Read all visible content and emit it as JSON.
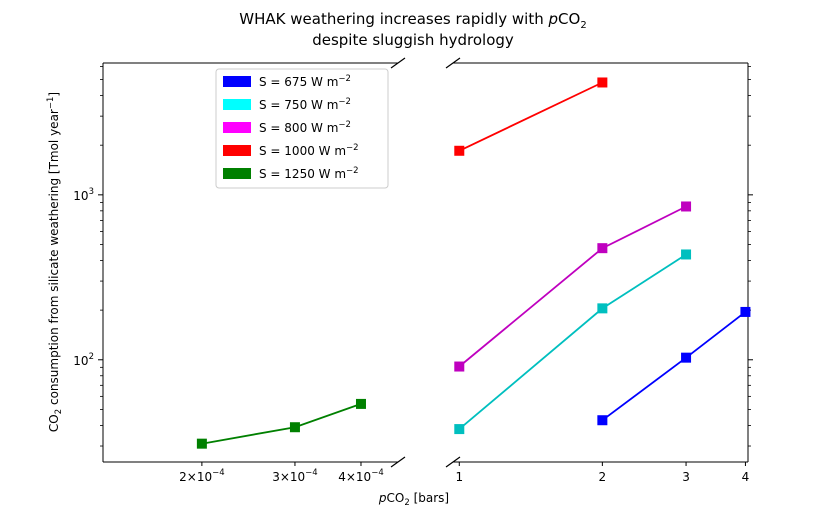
{
  "chart_data": {
    "type": "line",
    "title_line1_prefix": "WHAK weathering increases rapidly with ",
    "title_line1_var": "p",
    "title_line1_co": "CO",
    "title_line1_sub": "2",
    "title_line2": "despite sluggish hydrology",
    "ylabel_co": "CO",
    "ylabel_sub": "2",
    "ylabel_rest": " consumption from silicate weathering [Tmol year",
    "ylabel_exp": "−1",
    "ylabel_close": "]",
    "xlabel_var": "p",
    "xlabel_co": "CO",
    "xlabel_sub": "2",
    "xlabel_rest": " [bars]",
    "y_scale": "log",
    "ylim": [
      24,
      6300
    ],
    "y_ticks": [
      {
        "value": 100,
        "base": "10",
        "exp": "2"
      },
      {
        "value": 1000,
        "base": "10",
        "exp": "3"
      }
    ],
    "x_scale": "log",
    "left_panel": {
      "xlim": [
        0.00013,
        0.00047
      ],
      "x_ticks": [
        {
          "value": 0.0002,
          "mant": "2",
          "times": "×",
          "base": "10",
          "exp": "−4"
        },
        {
          "value": 0.0003,
          "mant": "3",
          "times": "×",
          "base": "10",
          "exp": "−4"
        },
        {
          "value": 0.0004,
          "mant": "4",
          "times": "×",
          "base": "10",
          "exp": "−4"
        }
      ]
    },
    "right_panel": {
      "xlim": [
        0.97,
        4.05
      ],
      "x_ticks": [
        {
          "value": 1,
          "label": "1"
        },
        {
          "value": 2,
          "label": "2"
        },
        {
          "value": 3,
          "label": "3"
        },
        {
          "value": 4,
          "label": "4"
        }
      ]
    },
    "legend": {
      "placement": "upper-center",
      "entries": [
        {
          "label_prefix": "S = 675 W m",
          "label_exp": "−2",
          "color": "#0000ff"
        },
        {
          "label_prefix": "S = 750 W m",
          "label_exp": "−2",
          "color": "#00ffff"
        },
        {
          "label_prefix": "S = 800 W m",
          "label_exp": "−2",
          "color": "#ff00ff"
        },
        {
          "label_prefix": "S = 1000 W m",
          "label_exp": "−2",
          "color": "#ff0000"
        },
        {
          "label_prefix": "S = 1250 W m",
          "label_exp": "−2",
          "color": "#008000"
        }
      ]
    },
    "series": [
      {
        "color": "#0000ff",
        "panel": "right",
        "x": [
          2,
          3,
          4
        ],
        "y": [
          43,
          103,
          195
        ]
      },
      {
        "color": "#00bfbf",
        "panel": "right",
        "x": [
          1,
          2,
          3
        ],
        "y": [
          38,
          205,
          435
        ]
      },
      {
        "color": "#bf00bf",
        "panel": "right",
        "x": [
          1,
          2,
          3
        ],
        "y": [
          91,
          475,
          850
        ]
      },
      {
        "color": "#ff0000",
        "panel": "right",
        "x": [
          1,
          2
        ],
        "y": [
          1850,
          4800
        ]
      },
      {
        "color": "#008000",
        "panel": "left",
        "x": [
          0.0002,
          0.0003,
          0.0004
        ],
        "y": [
          31,
          39,
          54
        ]
      }
    ]
  }
}
